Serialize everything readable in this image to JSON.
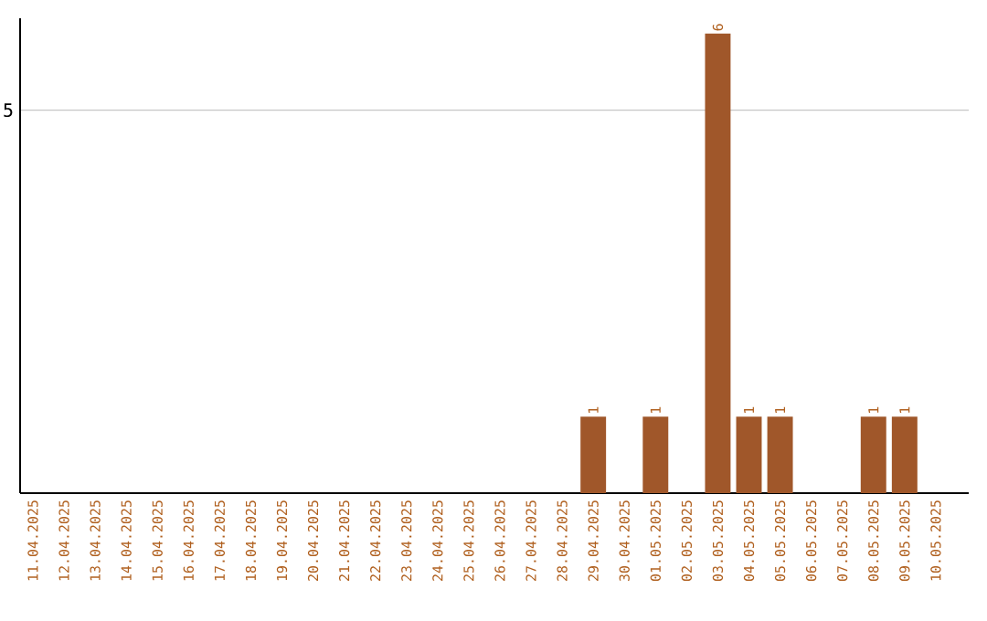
{
  "chart_data": {
    "type": "bar",
    "categories": [
      "11.04.2025",
      "12.04.2025",
      "13.04.2025",
      "14.04.2025",
      "15.04.2025",
      "16.04.2025",
      "17.04.2025",
      "18.04.2025",
      "19.04.2025",
      "20.04.2025",
      "21.04.2025",
      "22.04.2025",
      "23.04.2025",
      "24.04.2025",
      "25.04.2025",
      "26.04.2025",
      "27.04.2025",
      "28.04.2025",
      "29.04.2025",
      "30.04.2025",
      "01.05.2025",
      "02.05.2025",
      "03.05.2025",
      "04.05.2025",
      "05.05.2025",
      "06.05.2025",
      "07.05.2025",
      "08.05.2025",
      "09.05.2025",
      "10.05.2025"
    ],
    "values": [
      null,
      null,
      null,
      null,
      null,
      null,
      null,
      null,
      null,
      null,
      null,
      null,
      null,
      null,
      null,
      null,
      null,
      null,
      1,
      null,
      1,
      null,
      6,
      1,
      1,
      null,
      null,
      1,
      1,
      null
    ],
    "value_labels": [
      null,
      null,
      null,
      null,
      null,
      null,
      null,
      null,
      null,
      null,
      null,
      null,
      null,
      null,
      null,
      null,
      null,
      null,
      "1",
      null,
      "1",
      null,
      "6",
      "1",
      "1",
      null,
      null,
      "1",
      "1",
      null
    ],
    "color": "#a0572a",
    "ylim": [
      0,
      6.2
    ],
    "yticks": [
      5
    ],
    "grid": "y"
  }
}
